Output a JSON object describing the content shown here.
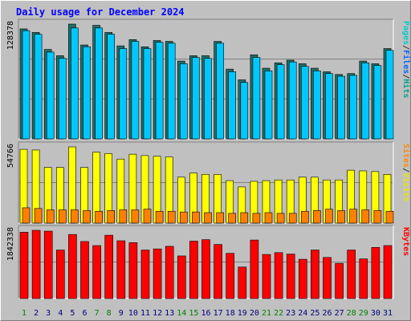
{
  "chart_data": [
    {
      "type": "bar",
      "title": "Daily usage for December 2024",
      "panel": "top",
      "ylabel": "128378",
      "right_label_parts": [
        "Pages",
        "/",
        "Files",
        "/",
        "Hits"
      ],
      "right_label_colors": [
        "#00cccc",
        "#333333",
        "#0066ff",
        "#333333",
        "#00a090"
      ],
      "ylim": [
        0,
        128378
      ],
      "categories": [
        "1",
        "2",
        "3",
        "4",
        "5",
        "6",
        "7",
        "8",
        "9",
        "10",
        "11",
        "12",
        "13",
        "14",
        "15",
        "16",
        "17",
        "18",
        "19",
        "20",
        "21",
        "22",
        "23",
        "24",
        "25",
        "26",
        "27",
        "28",
        "29",
        "30",
        "31"
      ],
      "series": [
        {
          "name": "Hits",
          "color": "#00a090",
          "values": [
            123000,
            119000,
            100000,
            93000,
            128378,
            105000,
            127000,
            119000,
            104000,
            111000,
            103000,
            110000,
            109000,
            87000,
            93000,
            93000,
            109000,
            78000,
            66000,
            94000,
            79000,
            85000,
            88000,
            84000,
            79000,
            75000,
            72000,
            73000,
            87000,
            84000,
            101000
          ]
        },
        {
          "name": "Files",
          "color": "#00c8ff",
          "values": [
            121000,
            117000,
            97000,
            90000,
            124000,
            103000,
            124000,
            117000,
            101000,
            109000,
            101000,
            108000,
            107000,
            84000,
            91000,
            90000,
            107000,
            75000,
            63000,
            91000,
            76000,
            83000,
            86000,
            81000,
            76000,
            73000,
            70000,
            71000,
            85000,
            82000,
            99000
          ]
        }
      ]
    },
    {
      "type": "bar",
      "panel": "middle",
      "ylabel": "54766",
      "right_label_parts": [
        "Sites",
        "/",
        "Visits"
      ],
      "right_label_colors": [
        "#ff8800",
        "#333333",
        "#e6e600"
      ],
      "ylim": [
        0,
        54766
      ],
      "categories": [
        "1",
        "2",
        "3",
        "4",
        "5",
        "6",
        "7",
        "8",
        "9",
        "10",
        "11",
        "12",
        "13",
        "14",
        "15",
        "16",
        "17",
        "18",
        "19",
        "20",
        "21",
        "22",
        "23",
        "24",
        "25",
        "26",
        "27",
        "28",
        "29",
        "30",
        "31"
      ],
      "series": [
        {
          "name": "Visits",
          "color": "#ffff00",
          "values": [
            53000,
            52500,
            40000,
            40000,
            54766,
            40000,
            51000,
            50000,
            46000,
            49500,
            48500,
            48000,
            47500,
            33000,
            36000,
            35000,
            35000,
            30500,
            26000,
            30000,
            30500,
            31000,
            31000,
            33000,
            33000,
            31000,
            31000,
            38000,
            37500,
            37000,
            35000
          ]
        },
        {
          "name": "Sites",
          "color": "#ff8000",
          "values": [
            11000,
            10500,
            9500,
            9500,
            9500,
            9000,
            8500,
            9000,
            9500,
            9500,
            10000,
            8500,
            8500,
            8000,
            8000,
            7500,
            7500,
            7000,
            7500,
            7000,
            7500,
            7000,
            7000,
            8500,
            9000,
            10000,
            9000,
            10000,
            9500,
            9000,
            8500
          ]
        }
      ]
    },
    {
      "type": "bar",
      "panel": "bottom",
      "ylabel": "1842338",
      "right_label_parts": [
        "KBytes"
      ],
      "right_label_colors": [
        "#ff0000"
      ],
      "ylim": [
        0,
        1842338
      ],
      "categories": [
        "1",
        "2",
        "3",
        "4",
        "5",
        "6",
        "7",
        "8",
        "9",
        "10",
        "11",
        "12",
        "13",
        "14",
        "15",
        "16",
        "17",
        "18",
        "19",
        "20",
        "21",
        "22",
        "23",
        "24",
        "25",
        "26",
        "27",
        "28",
        "29",
        "30",
        "31"
      ],
      "weekend_days": [
        "1",
        "7",
        "8",
        "14",
        "15",
        "21",
        "22",
        "28",
        "29"
      ],
      "series": [
        {
          "name": "KBytes",
          "color": "#ff0000",
          "values": [
            1790000,
            1842338,
            1820000,
            1310000,
            1730000,
            1540000,
            1430000,
            1710000,
            1560000,
            1510000,
            1310000,
            1340000,
            1410000,
            1150000,
            1550000,
            1590000,
            1460000,
            1220000,
            850000,
            1580000,
            1190000,
            1240000,
            1200000,
            1060000,
            1310000,
            1110000,
            950000,
            1310000,
            1070000,
            1380000,
            1430000
          ]
        }
      ]
    }
  ]
}
